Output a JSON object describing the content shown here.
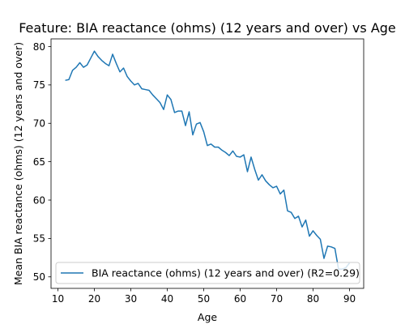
{
  "chart_data": {
    "type": "line",
    "title": "Feature: BIA reactance (ohms) (12 years and over) vs Age",
    "xlabel": "Age",
    "ylabel": "Mean BIA reactance (ohms) (12 years and over)",
    "xlim": [
      8.1,
      93.9
    ],
    "ylim": [
      48.5,
      81
    ],
    "xticks": [
      10,
      20,
      30,
      40,
      50,
      60,
      70,
      80,
      90
    ],
    "yticks": [
      50,
      55,
      60,
      65,
      70,
      75,
      80
    ],
    "grid": false,
    "legend_position": "lower-right",
    "series": [
      {
        "name": "BIA reactance (ohms) (12 years and over) (R2=0.29)",
        "color": "#1f77b4",
        "x": [
          12,
          13,
          14,
          15,
          16,
          17,
          18,
          19,
          20,
          21,
          22,
          23,
          24,
          25,
          26,
          27,
          28,
          29,
          30,
          31,
          32,
          33,
          34,
          35,
          36,
          37,
          38,
          39,
          40,
          41,
          42,
          43,
          44,
          45,
          46,
          47,
          48,
          49,
          50,
          51,
          52,
          53,
          54,
          55,
          56,
          57,
          58,
          59,
          60,
          61,
          62,
          63,
          64,
          65,
          66,
          67,
          68,
          69,
          70,
          71,
          72,
          73,
          74,
          75,
          76,
          77,
          78,
          79,
          80,
          81,
          82,
          83,
          84,
          85,
          86,
          87,
          88,
          89,
          90
        ],
        "y": [
          75.6,
          75.7,
          76.9,
          77.3,
          77.9,
          77.3,
          77.6,
          78.5,
          79.4,
          78.7,
          78.2,
          77.8,
          77.5,
          79.0,
          77.8,
          76.7,
          77.2,
          76.1,
          75.5,
          75.0,
          75.2,
          74.5,
          74.4,
          74.3,
          73.7,
          73.2,
          72.7,
          71.8,
          73.7,
          73.1,
          71.4,
          71.6,
          71.6,
          69.7,
          71.5,
          68.5,
          69.9,
          70.1,
          68.9,
          67.1,
          67.3,
          66.9,
          66.9,
          66.5,
          66.2,
          65.8,
          66.4,
          65.7,
          65.6,
          65.9,
          63.7,
          65.6,
          64.0,
          62.6,
          63.3,
          62.5,
          62.0,
          61.6,
          61.8,
          60.8,
          61.3,
          58.6,
          58.4,
          57.6,
          57.9,
          56.5,
          57.4,
          55.3,
          56.0,
          55.4,
          54.9,
          52.4,
          54.0,
          53.9,
          53.7,
          51.0,
          51.0,
          51.2,
          51.8
        ]
      }
    ]
  }
}
